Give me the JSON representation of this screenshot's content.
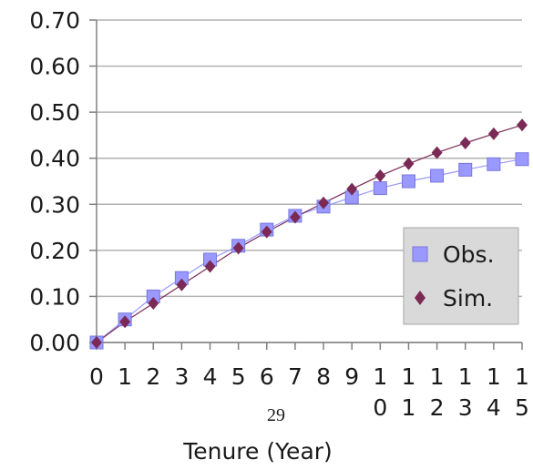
{
  "chart_data": {
    "type": "line",
    "x": [
      0,
      1,
      2,
      3,
      4,
      5,
      6,
      7,
      8,
      9,
      10,
      11,
      12,
      13,
      14,
      15
    ],
    "x_tick_labels": [
      [
        "0"
      ],
      [
        "1"
      ],
      [
        "2"
      ],
      [
        "3"
      ],
      [
        "4"
      ],
      [
        "5"
      ],
      [
        "6"
      ],
      [
        "7"
      ],
      [
        "8"
      ],
      [
        "9"
      ],
      [
        "1",
        "0"
      ],
      [
        "1",
        "1"
      ],
      [
        "1",
        "2"
      ],
      [
        "1",
        "3"
      ],
      [
        "1",
        "4"
      ],
      [
        "1",
        "5"
      ]
    ],
    "y_tick_labels": [
      "0.00",
      "0.10",
      "0.20",
      "0.30",
      "0.40",
      "0.50",
      "0.60",
      "0.70"
    ],
    "ylim": [
      0,
      0.7
    ],
    "xlabel": "Tenure (Year)",
    "grid": true,
    "legend_placement": "right",
    "series": [
      {
        "name": "Obs.",
        "color": "#9999ff",
        "marker": "square",
        "values": [
          0.0,
          0.05,
          0.1,
          0.14,
          0.18,
          0.21,
          0.245,
          0.275,
          0.295,
          0.315,
          0.335,
          0.35,
          0.362,
          0.375,
          0.387,
          0.398
        ]
      },
      {
        "name": "Sim.",
        "color": "#7a2a55",
        "marker": "diamond",
        "values": [
          0.0,
          0.045,
          0.085,
          0.125,
          0.165,
          0.205,
          0.24,
          0.272,
          0.303,
          0.333,
          0.362,
          0.388,
          0.412,
          0.433,
          0.453,
          0.472
        ]
      }
    ]
  },
  "page_number": "29"
}
